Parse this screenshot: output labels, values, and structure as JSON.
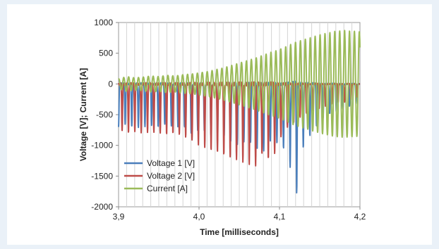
{
  "chart_data": {
    "type": "line",
    "xlabel": "Time [milliseconds]",
    "ylabel": "Voltage [V]; Current [A]",
    "xlim": [
      3.9,
      4.2
    ],
    "ylim": [
      -2000,
      1000
    ],
    "x_ticks": [
      3.9,
      4.0,
      4.1,
      4.2
    ],
    "x_tick_labels": [
      "3,9",
      "4,0",
      "4,1",
      "4,2"
    ],
    "y_ticks": [
      1000,
      500,
      0,
      -500,
      -1000,
      -1500,
      -2000
    ],
    "y_tick_labels": [
      "1000",
      "500",
      "0",
      "-500",
      "-1000",
      "-1500",
      "-2000"
    ],
    "grid": "vertical",
    "legend_position": "bottom-left",
    "series": [
      {
        "name": "Voltage 1 [V]",
        "color": "#4a7ebb",
        "waveform": "negative-spikes",
        "x": [
          3.9,
          3.91,
          3.92,
          3.93,
          3.94,
          3.95,
          3.96,
          3.97,
          3.98,
          3.99,
          4.0,
          4.01,
          4.02,
          4.03,
          4.04,
          4.05,
          4.06,
          4.07,
          4.08,
          4.09,
          4.1,
          4.11,
          4.12,
          4.13,
          4.14,
          4.15,
          4.16,
          4.17,
          4.18,
          4.19,
          4.2
        ],
        "y": [
          -700,
          -650,
          -720,
          -700,
          -680,
          -700,
          -640,
          -720,
          -680,
          -800,
          -750,
          -780,
          -900,
          -850,
          -950,
          -1000,
          -900,
          -1050,
          -1100,
          -900,
          -1000,
          -1100,
          -1900,
          -1000,
          -800,
          -600,
          -500,
          -450,
          -400,
          -350,
          -300
        ]
      },
      {
        "name": "Voltage 2 [V]",
        "color": "#be4b48",
        "waveform": "negative-spikes",
        "x": [
          3.9,
          3.91,
          3.92,
          3.93,
          3.94,
          3.95,
          3.96,
          3.97,
          3.98,
          3.99,
          4.0,
          4.01,
          4.02,
          4.03,
          4.04,
          4.05,
          4.06,
          4.07,
          4.08,
          4.09,
          4.1,
          4.11,
          4.12,
          4.13,
          4.14,
          4.15,
          4.16,
          4.17,
          4.18,
          4.19,
          4.2
        ],
        "y": [
          -750,
          -800,
          -780,
          -800,
          -780,
          -800,
          -820,
          -800,
          -850,
          -900,
          -1000,
          -1050,
          -1100,
          -1150,
          -1200,
          -1250,
          -1300,
          -1350,
          -1100,
          -1300,
          -900,
          -700,
          -600,
          -500,
          -450,
          -400,
          -350,
          -300,
          -300,
          -250,
          -200
        ]
      },
      {
        "name": "Current [A]",
        "color": "#9bbb59",
        "waveform": "oscillation",
        "x": [
          3.9,
          3.91,
          3.92,
          3.93,
          3.94,
          3.95,
          3.96,
          3.97,
          3.98,
          3.99,
          4.0,
          4.01,
          4.02,
          4.03,
          4.04,
          4.05,
          4.06,
          4.07,
          4.08,
          4.09,
          4.1,
          4.11,
          4.12,
          4.13,
          4.14,
          4.15,
          4.16,
          4.17,
          4.18,
          4.19,
          4.2
        ],
        "y": [
          80,
          120,
          100,
          110,
          130,
          120,
          140,
          130,
          150,
          160,
          180,
          200,
          230,
          260,
          300,
          340,
          380,
          420,
          470,
          520,
          560,
          620,
          680,
          720,
          760,
          800,
          830,
          860,
          870,
          860,
          850
        ]
      }
    ]
  }
}
